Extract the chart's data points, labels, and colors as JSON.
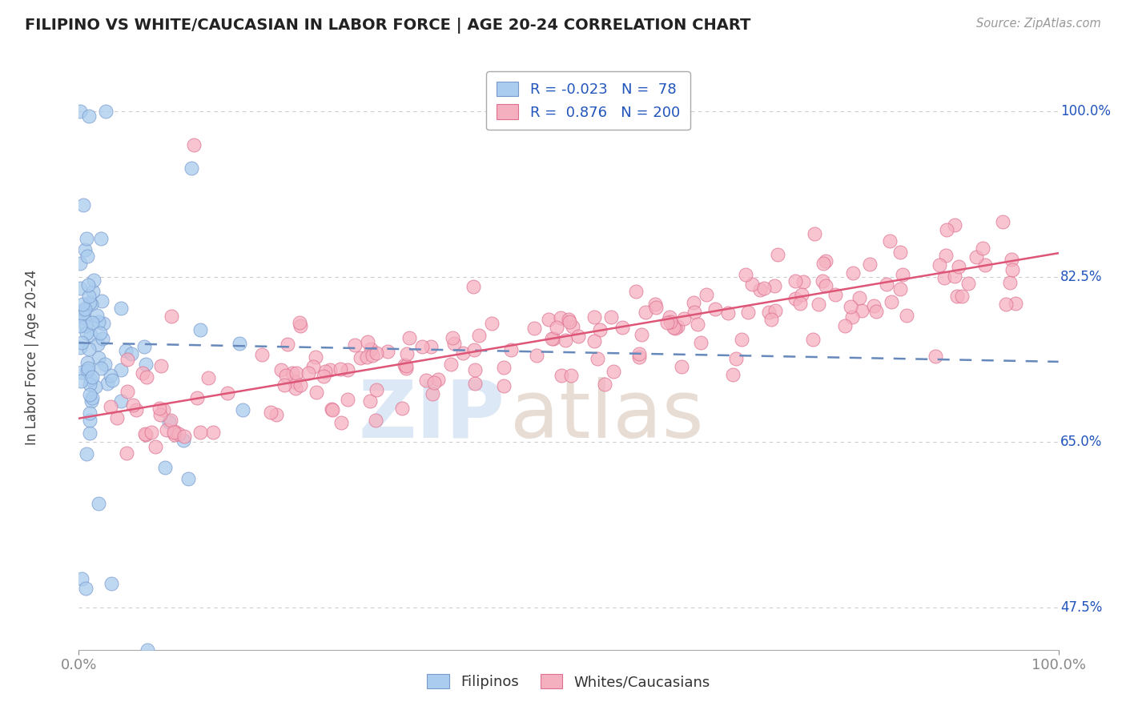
{
  "title": "FILIPINO VS WHITE/CAUCASIAN IN LABOR FORCE | AGE 20-24 CORRELATION CHART",
  "source": "Source: ZipAtlas.com",
  "ylabel": "In Labor Force | Age 20-24",
  "xlim": [
    0.0,
    1.0
  ],
  "ylim": [
    0.43,
    1.05
  ],
  "yticks": [
    0.475,
    0.65,
    0.825,
    1.0
  ],
  "ytick_labels": [
    "47.5%",
    "65.0%",
    "82.5%",
    "100.0%"
  ],
  "xticks": [
    0.0,
    1.0
  ],
  "xtick_labels": [
    "0.0%",
    "100.0%"
  ],
  "filipino_R": -0.023,
  "filipino_N": 78,
  "caucasian_R": 0.876,
  "caucasian_N": 200,
  "filipino_color": "#aaccee",
  "caucasian_color": "#f5b0c0",
  "filipino_edge_color": "#7799cc",
  "caucasian_edge_color": "#dd7090",
  "filipino_line_color": "#6688bb",
  "caucasian_line_color": "#dd5577",
  "legend_color": "#2255bb",
  "background_color": "#ffffff",
  "grid_color": "#cccccc",
  "watermark_zip_color": "#dce8f5",
  "watermark_atlas_color": "#e8ddd5"
}
